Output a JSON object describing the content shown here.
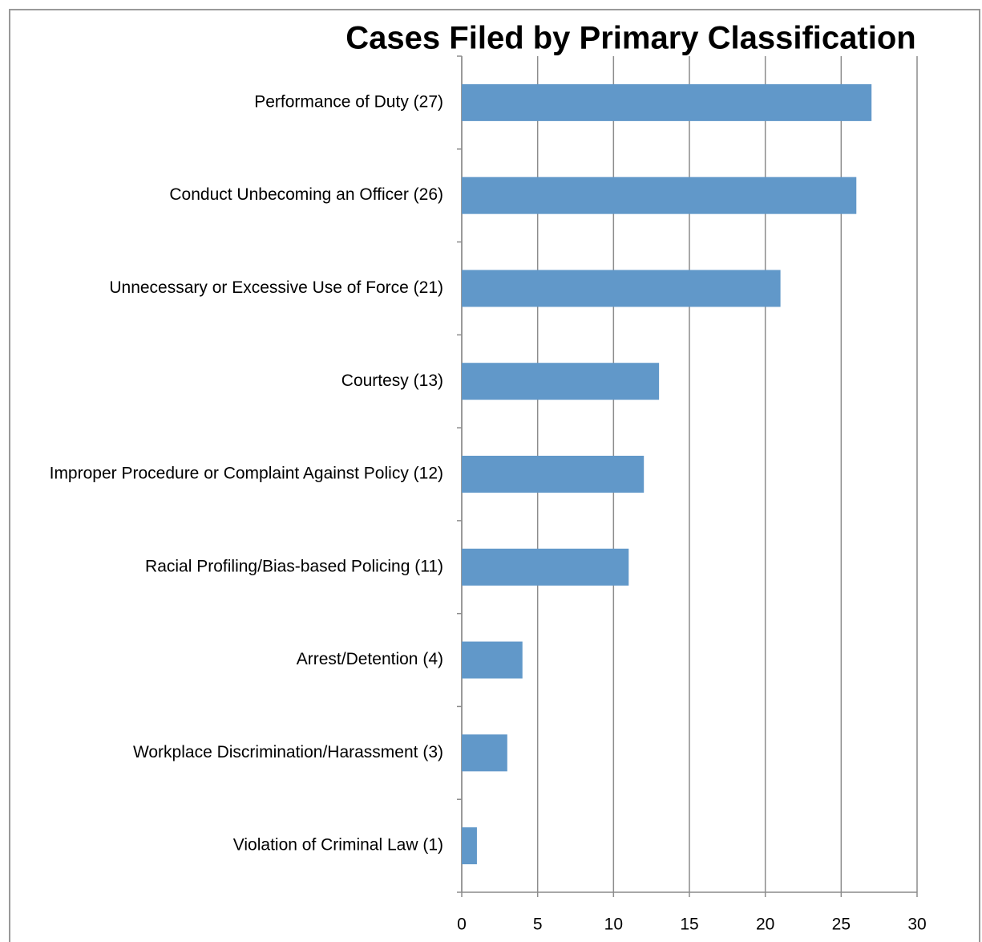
{
  "chart_data": {
    "type": "bar",
    "orientation": "horizontal",
    "title": "Cases Filed by Primary Classification",
    "categories": [
      "Performance of Duty (27)",
      "Conduct Unbecoming an Officer (26)",
      "Unnecessary or Excessive Use of Force (21)",
      "Courtesy (13)",
      "Improper Procedure or Complaint Against Policy (12)",
      "Racial Profiling/Bias-based Policing (11)",
      "Arrest/Detention (4)",
      "Workplace Discrimination/Harassment (3)",
      "Violation of Criminal Law (1)"
    ],
    "values": [
      27,
      26,
      21,
      13,
      12,
      11,
      4,
      3,
      1
    ],
    "color": "#6198c9",
    "xlim": [
      0,
      30
    ],
    "xticks": [
      0,
      5,
      10,
      15,
      20,
      25,
      30
    ],
    "grid": true
  }
}
